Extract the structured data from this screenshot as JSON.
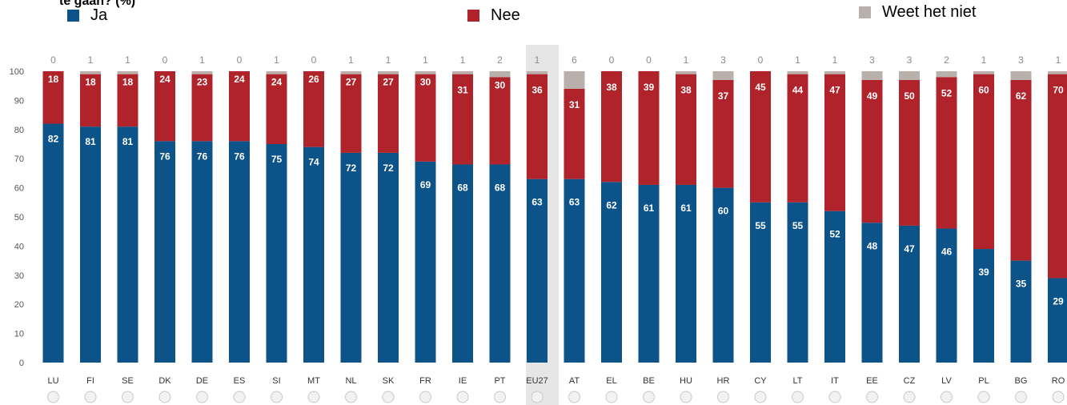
{
  "title": "te gaan? (%)",
  "colors": {
    "ja": "#0b5389",
    "nee": "#b0232a",
    "weet": "#b9b0ab",
    "highlight": "#e6e6e6"
  },
  "chart_data": {
    "type": "bar",
    "stacked": true,
    "title": "te gaan? (%)",
    "ylim": [
      0,
      100
    ],
    "yticks": [
      0,
      10,
      20,
      30,
      40,
      50,
      60,
      70,
      80,
      90,
      100
    ],
    "categories": [
      "LU",
      "FI",
      "SE",
      "DK",
      "DE",
      "ES",
      "SI",
      "MT",
      "NL",
      "SK",
      "FR",
      "IE",
      "PT",
      "EU27",
      "AT",
      "EL",
      "BE",
      "HU",
      "HR",
      "CY",
      "LT",
      "IT",
      "EE",
      "CZ",
      "LV",
      "PL",
      "BG",
      "RO"
    ],
    "highlight_category": "EU27",
    "legend_position": "top",
    "series": [
      {
        "name": "Ja",
        "values": [
          82,
          81,
          81,
          76,
          76,
          76,
          75,
          74,
          72,
          72,
          69,
          68,
          68,
          63,
          63,
          62,
          61,
          61,
          60,
          55,
          55,
          52,
          48,
          47,
          46,
          39,
          35,
          29
        ]
      },
      {
        "name": "Nee",
        "values": [
          18,
          18,
          18,
          24,
          23,
          24,
          24,
          26,
          27,
          27,
          30,
          31,
          30,
          36,
          31,
          38,
          39,
          38,
          37,
          45,
          44,
          47,
          49,
          50,
          52,
          60,
          62,
          70
        ]
      },
      {
        "name": "Weet het niet",
        "values": [
          0,
          1,
          1,
          0,
          1,
          0,
          1,
          0,
          1,
          1,
          1,
          1,
          2,
          1,
          6,
          0,
          0,
          1,
          3,
          0,
          1,
          1,
          3,
          3,
          2,
          1,
          3,
          1
        ]
      }
    ]
  }
}
